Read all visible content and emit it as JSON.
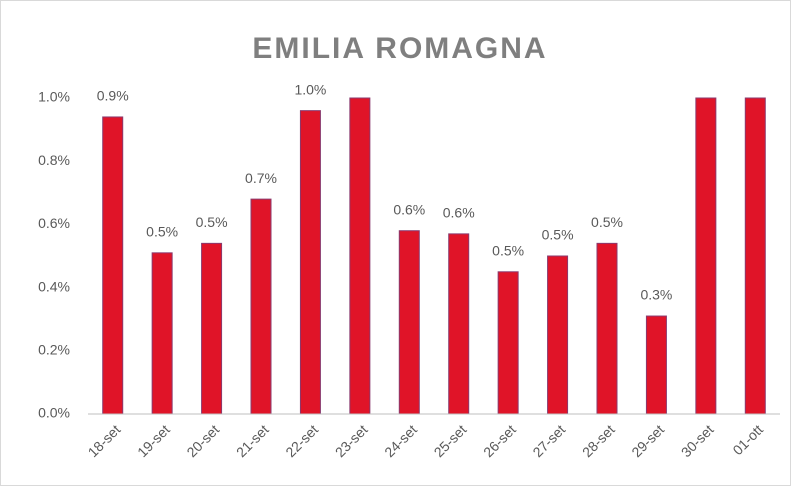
{
  "chart_data": {
    "type": "bar",
    "title": "EMILIA ROMAGNA",
    "categories": [
      "18-set",
      "19-set",
      "20-set",
      "21-set",
      "22-set",
      "23-set",
      "24-set",
      "25-set",
      "26-set",
      "27-set",
      "28-set",
      "29-set",
      "30-set",
      "01-ott"
    ],
    "values": [
      0.94,
      0.51,
      0.54,
      0.68,
      0.96,
      1.0,
      0.58,
      0.57,
      0.45,
      0.5,
      0.54,
      0.31,
      1.0,
      1.0
    ],
    "value_labels": [
      "0.9%",
      "0.5%",
      "0.5%",
      "0.7%",
      "1.0%",
      null,
      "0.6%",
      "0.6%",
      "0.5%",
      "0.5%",
      "0.5%",
      "0.3%",
      null,
      null
    ],
    "color": "#e01428",
    "ylim": [
      0,
      1.0
    ],
    "yticks": [
      {
        "value": 0,
        "label": "0.0%"
      },
      {
        "value": 0.2,
        "label": "0.2%"
      },
      {
        "value": 0.4,
        "label": "0.4%"
      },
      {
        "value": 0.6,
        "label": "0.6%"
      },
      {
        "value": 0.8,
        "label": "0.8%"
      },
      {
        "value": 1.0,
        "label": "1.0%"
      }
    ],
    "grid": false
  }
}
